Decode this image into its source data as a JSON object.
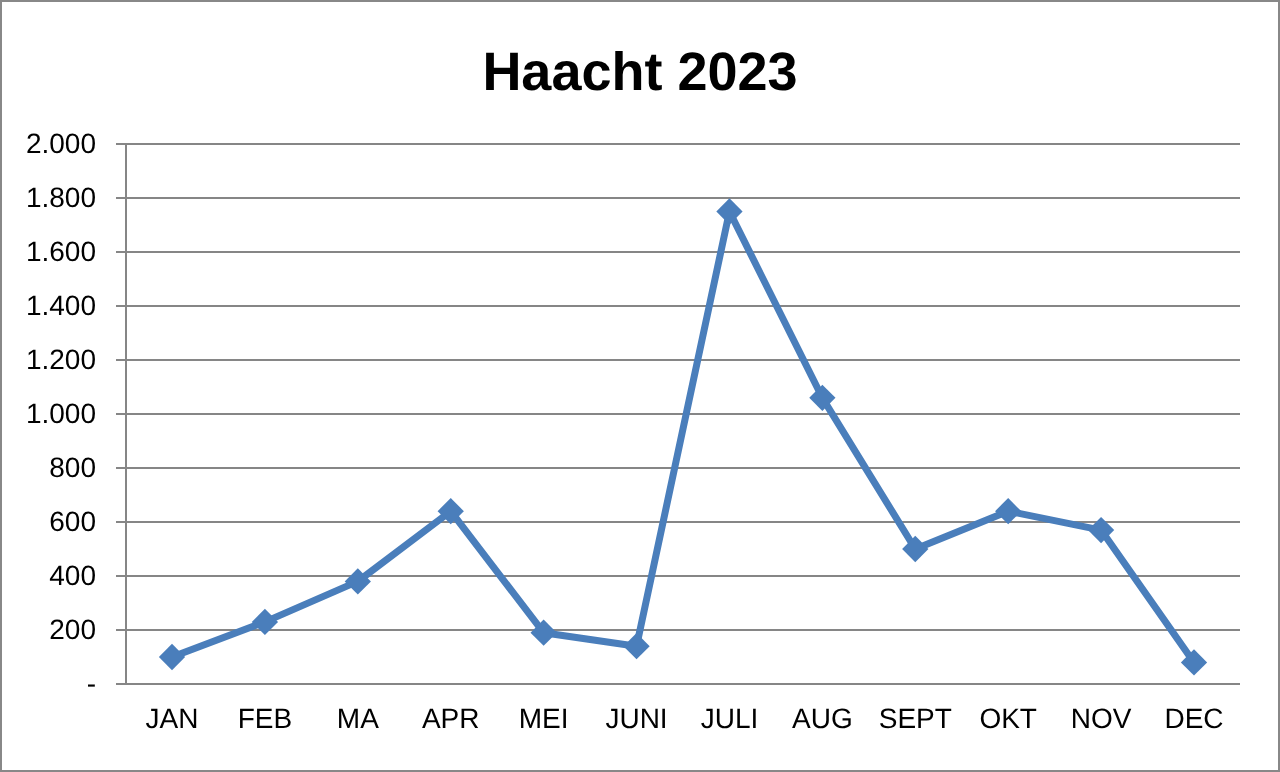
{
  "chart_data": {
    "type": "line",
    "title": "Haacht 2023",
    "categories": [
      "JAN",
      "FEB",
      "MA",
      "APR",
      "MEI",
      "JUNI",
      "JULI",
      "AUG",
      "SEPT",
      "OKT",
      "NOV",
      "DEC"
    ],
    "series": [
      {
        "color": "#4a7ebb",
        "values": [
          100,
          230,
          380,
          640,
          190,
          140,
          1750,
          1060,
          500,
          640,
          570,
          80
        ]
      }
    ],
    "ylim": [
      0,
      2000
    ],
    "yticks": [
      {
        "value": 0,
        "label": "-"
      },
      {
        "value": 200,
        "label": "200"
      },
      {
        "value": 400,
        "label": "400"
      },
      {
        "value": 600,
        "label": "600"
      },
      {
        "value": 800,
        "label": "800"
      },
      {
        "value": 1000,
        "label": "1.000"
      },
      {
        "value": 1200,
        "label": "1.200"
      },
      {
        "value": 1400,
        "label": "1.400"
      },
      {
        "value": 1600,
        "label": "1.600"
      },
      {
        "value": 1800,
        "label": "1.800"
      },
      {
        "value": 2000,
        "label": "2.000"
      }
    ],
    "grid": "y",
    "marker": "diamond",
    "line_style": "solid"
  }
}
